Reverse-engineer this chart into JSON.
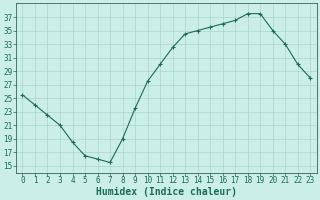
{
  "x": [
    0,
    1,
    2,
    3,
    4,
    5,
    6,
    7,
    8,
    9,
    10,
    11,
    12,
    13,
    14,
    15,
    16,
    17,
    18,
    19,
    20,
    21,
    22,
    23
  ],
  "y": [
    25.5,
    24.0,
    22.5,
    21.0,
    18.5,
    16.5,
    16.0,
    15.5,
    19.0,
    23.5,
    27.5,
    30.0,
    32.5,
    34.5,
    35.0,
    35.5,
    36.0,
    36.5,
    37.5,
    37.5,
    35.0,
    33.0,
    30.0,
    28.0
  ],
  "line_color": "#1a6b5a",
  "marker": "+",
  "marker_size": 3,
  "marker_linewidth": 0.8,
  "line_width": 0.8,
  "bg_color": "#cceee8",
  "grid_color": "#aad4cc",
  "axis_color": "#336655",
  "xlabel": "Humidex (Indice chaleur)",
  "ylim": [
    14,
    39
  ],
  "xlim": [
    -0.5,
    23.5
  ],
  "yticks": [
    15,
    17,
    19,
    21,
    23,
    25,
    27,
    29,
    31,
    33,
    35,
    37
  ],
  "xticks": [
    0,
    1,
    2,
    3,
    4,
    5,
    6,
    7,
    8,
    9,
    10,
    11,
    12,
    13,
    14,
    15,
    16,
    17,
    18,
    19,
    20,
    21,
    22,
    23
  ],
  "tick_fontsize": 5.5,
  "label_fontsize": 7.0,
  "tick_color": "#1a6b5a"
}
